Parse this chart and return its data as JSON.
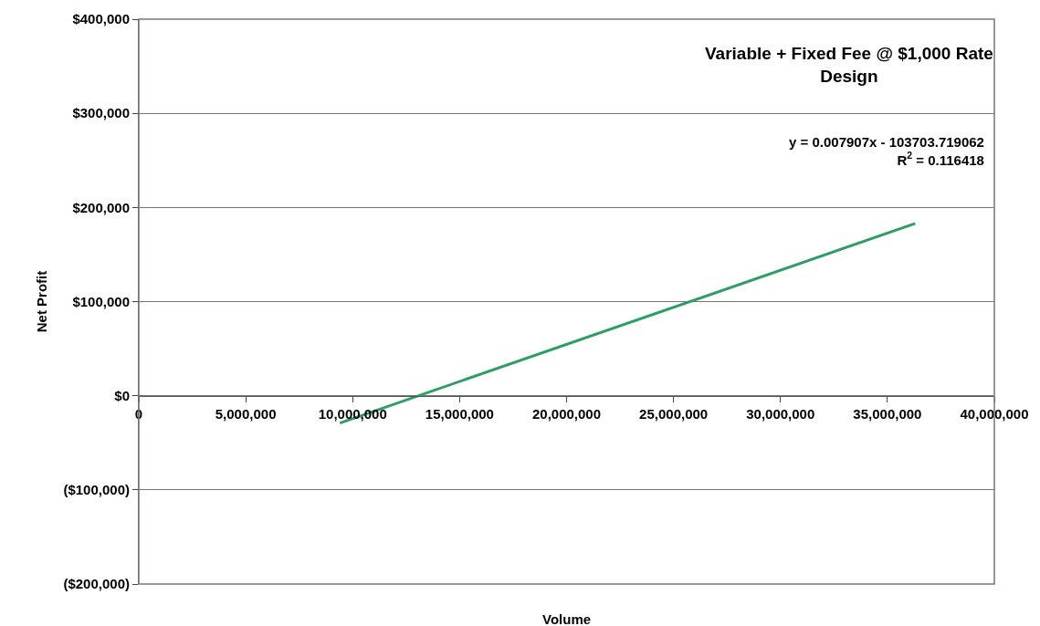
{
  "chart_data": {
    "type": "line",
    "title": "Variable + Fixed Fee @ $1,000 Rate\nDesign",
    "xlabel": "Volume",
    "ylabel": "Net Profit",
    "annotations": [
      "y = 0.007907x - 103703.719062\nR$^{2}$ = 0.116418"
    ],
    "series": [
      {
        "color": "#2e9e64",
        "x": [
          9400000,
          36300000
        ],
        "values": [
          -29000,
          183000
        ]
      }
    ],
    "xlim": [
      0,
      40000000
    ],
    "xticks": [
      {
        "value": 0,
        "label": "0"
      },
      {
        "value": 5000000,
        "label": "5,000,000"
      },
      {
        "value": 10000000,
        "label": "10,000,000"
      },
      {
        "value": 15000000,
        "label": "15,000,000"
      },
      {
        "value": 20000000,
        "label": "20,000,000"
      },
      {
        "value": 25000000,
        "label": "25,000,000"
      },
      {
        "value": 30000000,
        "label": "30,000,000"
      },
      {
        "value": 35000000,
        "label": "35,000,000"
      },
      {
        "value": 40000000,
        "label": "40,000,000"
      }
    ],
    "ylim": [
      -200000,
      400000
    ],
    "yticks": [
      {
        "value": -200000,
        "label": "($200,000)"
      },
      {
        "value": -100000,
        "label": "($100,000)"
      },
      {
        "value": 0,
        "label": "$0"
      },
      {
        "value": 100000,
        "label": "$100,000"
      },
      {
        "value": 200000,
        "label": "$200,000"
      },
      {
        "value": 300000,
        "label": "$300,000"
      },
      {
        "value": 400000,
        "label": "$400,000"
      }
    ],
    "grid": "y",
    "marker": "none",
    "line_style": "solid"
  }
}
